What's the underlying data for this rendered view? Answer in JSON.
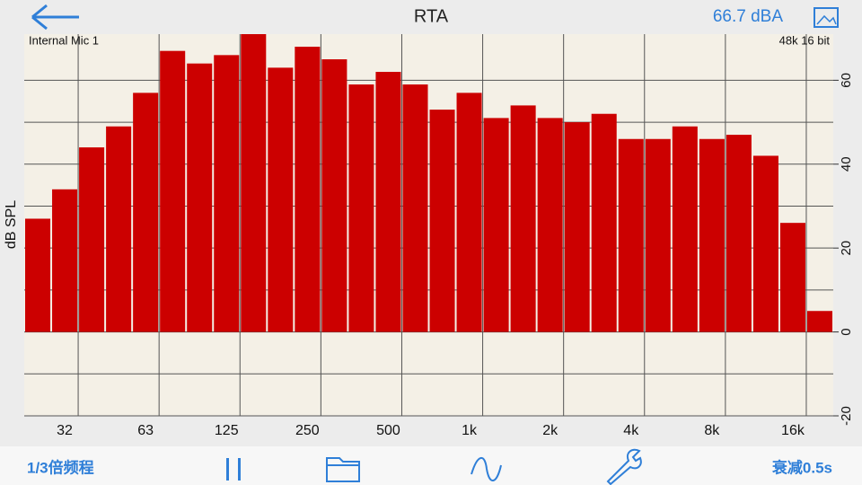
{
  "header": {
    "title": "RTA",
    "level": "66.7 dBA"
  },
  "chart_data": {
    "type": "bar",
    "source": "Internal Mic 1",
    "format": "48k 16 bit",
    "y_label": "dB SPL",
    "categories": [
      null,
      "32",
      null,
      null,
      "63",
      null,
      null,
      "125",
      null,
      null,
      "250",
      null,
      null,
      "500",
      null,
      null,
      "1k",
      null,
      null,
      "2k",
      null,
      null,
      "4k",
      null,
      null,
      "8k",
      null,
      null,
      "16k",
      null
    ],
    "values": [
      27,
      34,
      44,
      49,
      57,
      67,
      64,
      66,
      71,
      63,
      68,
      65,
      59,
      62,
      59,
      53,
      57,
      51,
      54,
      51,
      50,
      52,
      46,
      46,
      49,
      46,
      47,
      42,
      26,
      5
    ],
    "color": "#cc0000",
    "ylim": [
      -20,
      71
    ],
    "yticks": [
      -20,
      0,
      20,
      40,
      60
    ],
    "grid": true
  },
  "toolbar": {
    "bandwidth": "1/3倍频程",
    "decay": "衰减0.5s"
  }
}
